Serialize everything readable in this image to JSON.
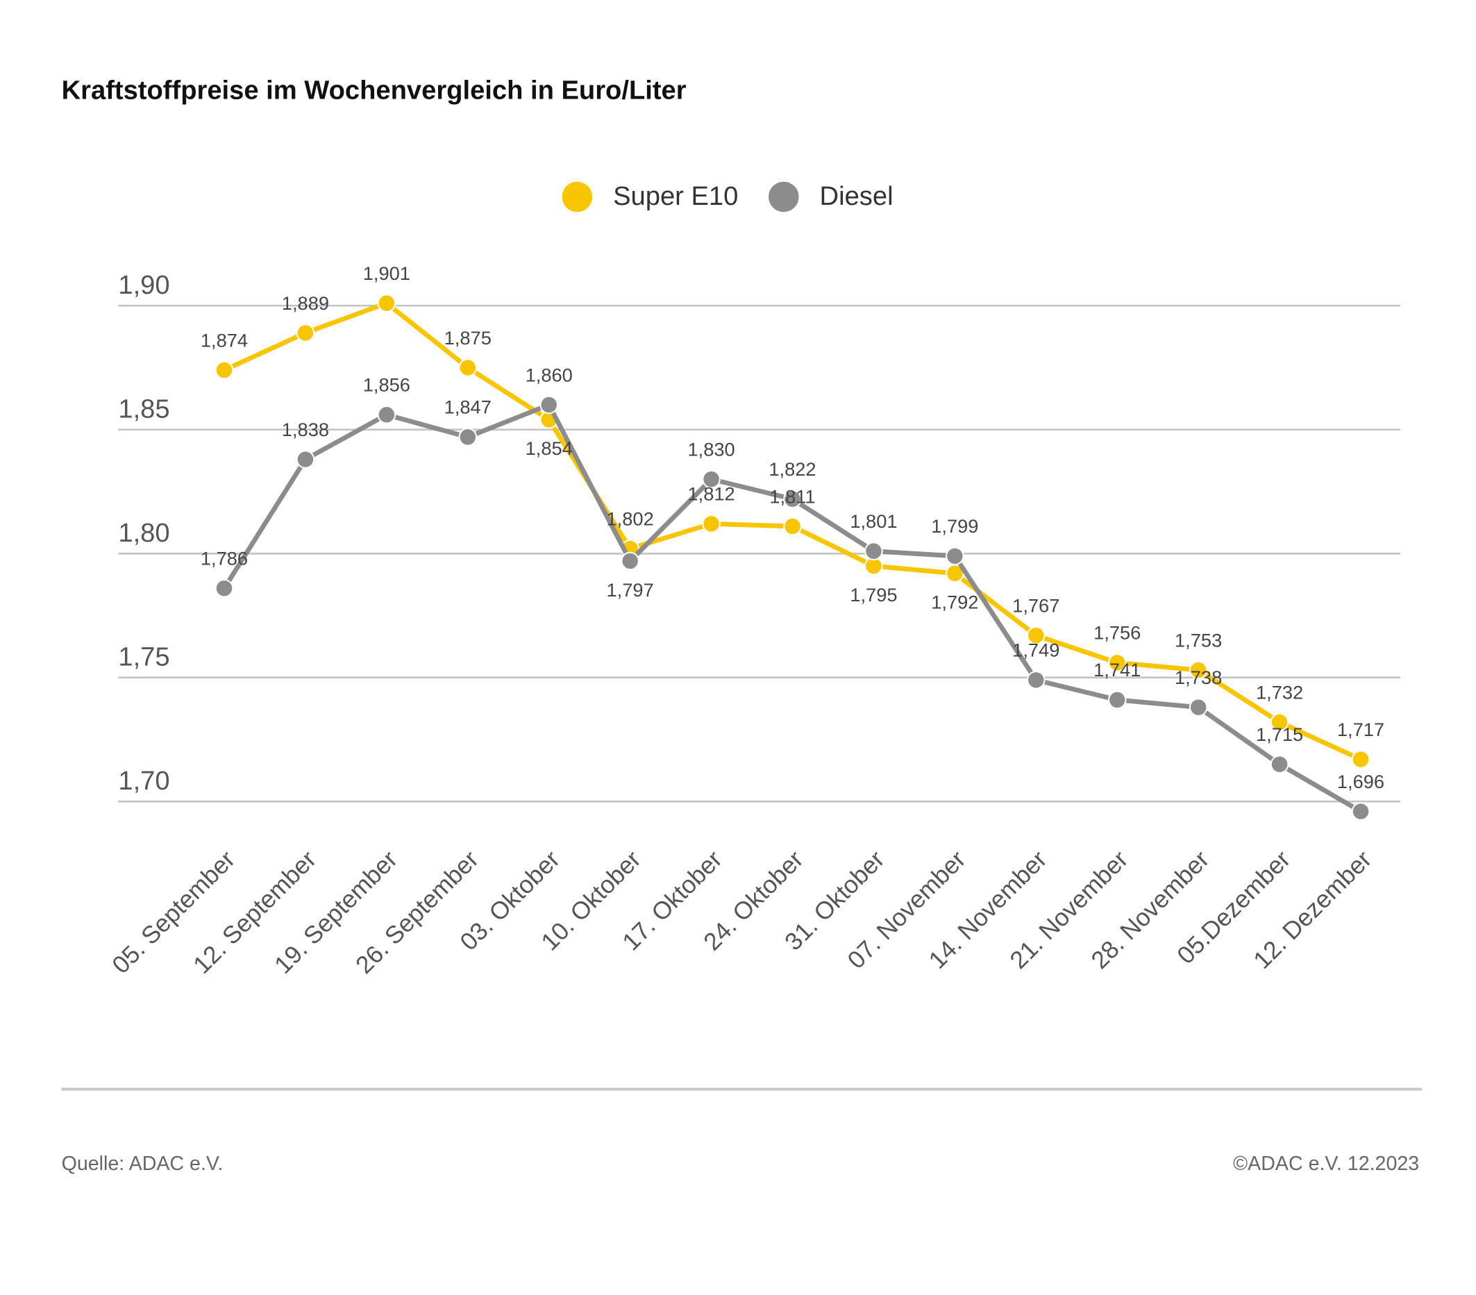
{
  "chart_data": {
    "type": "line",
    "title": "Kraftstoffpreise im Wochenvergleich in Euro/Liter",
    "categories": [
      "05. September",
      "12. September",
      "19. September",
      "26. September",
      "03. Oktober",
      "10. Oktober",
      "17. Oktober",
      "24. Oktober",
      "31. Oktober",
      "07. November",
      "14. November",
      "21. November",
      "28. November",
      "05.Dezember",
      "12. Dezember"
    ],
    "series": [
      {
        "name": "Super E10",
        "color": "#f7c600",
        "values": [
          1.874,
          1.889,
          1.901,
          1.875,
          1.854,
          1.802,
          1.812,
          1.811,
          1.795,
          1.792,
          1.767,
          1.756,
          1.753,
          1.732,
          1.717
        ],
        "value_labels": [
          "1,874",
          "1,889",
          "1,901",
          "1,875",
          "1,854",
          "1,802",
          "1,812",
          "1,811",
          "1,795",
          "1,792",
          "1,767",
          "1,756",
          "1,753",
          "1,732",
          "1,717"
        ]
      },
      {
        "name": "Diesel",
        "color": "#8c8c8c",
        "values": [
          1.786,
          1.838,
          1.856,
          1.847,
          1.86,
          1.797,
          1.83,
          1.822,
          1.801,
          1.799,
          1.749,
          1.741,
          1.738,
          1.715,
          1.696
        ],
        "value_labels": [
          "1,786",
          "1,838",
          "1,856",
          "1,847",
          "1,860",
          "1,797",
          "1,830",
          "1,822",
          "1,801",
          "1,799",
          "1,749",
          "1,741",
          "1,738",
          "1,715",
          "1,696"
        ]
      }
    ],
    "ylim": [
      1.7,
      1.9
    ],
    "yticks": [
      {
        "value": 1.7,
        "label": "1,70"
      },
      {
        "value": 1.75,
        "label": "1,75"
      },
      {
        "value": 1.8,
        "label": "1,80"
      },
      {
        "value": 1.85,
        "label": "1,85"
      },
      {
        "value": 1.9,
        "label": "1,90"
      }
    ],
    "grid": true,
    "legend": "top",
    "source": "Quelle: ADAC e.V.",
    "copyright": "©ADAC e.V. 12.2023"
  }
}
